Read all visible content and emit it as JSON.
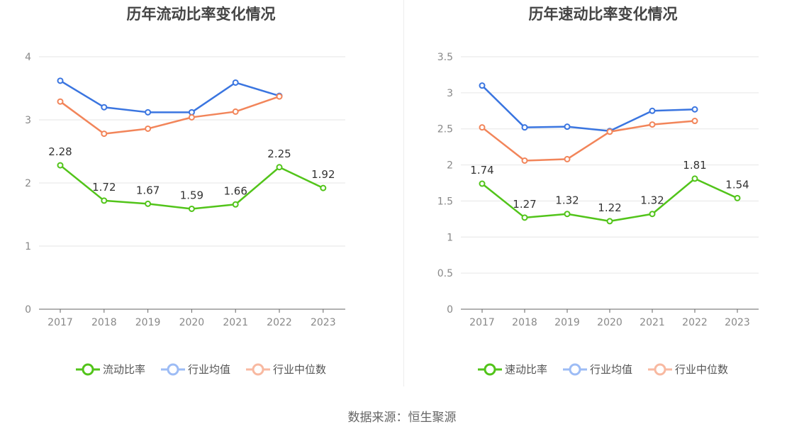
{
  "chart_data": [
    {
      "type": "line",
      "title": "历年流动比率变化情况",
      "categories": [
        "2017",
        "2018",
        "2019",
        "2020",
        "2021",
        "2022",
        "2023"
      ],
      "ylim": [
        0,
        4
      ],
      "yticks": [
        0,
        1,
        2,
        3,
        4
      ],
      "grid": true,
      "legend_position": "bottom",
      "series": [
        {
          "name": "流动比率",
          "color": "#52c41a",
          "values": [
            2.28,
            1.72,
            1.67,
            1.59,
            1.66,
            2.25,
            1.92
          ],
          "labels": [
            "2.28",
            "1.72",
            "1.67",
            "1.59",
            "1.66",
            "2.25",
            "1.92"
          ]
        },
        {
          "name": "行业均值",
          "color": "#3a75e0",
          "values": [
            3.62,
            3.2,
            3.12,
            3.12,
            3.59,
            3.38,
            null
          ]
        },
        {
          "name": "行业中位数",
          "color": "#f2855a",
          "values": [
            3.29,
            2.78,
            2.86,
            3.04,
            3.13,
            3.37,
            null
          ]
        }
      ]
    },
    {
      "type": "line",
      "title": "历年速动比率变化情况",
      "categories": [
        "2017",
        "2018",
        "2019",
        "2020",
        "2021",
        "2022",
        "2023"
      ],
      "ylim": [
        0,
        3.5
      ],
      "yticks": [
        0,
        0.5,
        1,
        1.5,
        2,
        2.5,
        3,
        3.5
      ],
      "grid": true,
      "legend_position": "bottom",
      "series": [
        {
          "name": "速动比率",
          "color": "#52c41a",
          "values": [
            1.74,
            1.27,
            1.32,
            1.22,
            1.32,
            1.81,
            1.54
          ],
          "labels": [
            "1.74",
            "1.27",
            "1.32",
            "1.22",
            "1.32",
            "1.81",
            "1.54"
          ]
        },
        {
          "name": "行业均值",
          "color": "#3a75e0",
          "values": [
            3.1,
            2.52,
            2.53,
            2.47,
            2.75,
            2.77,
            null
          ]
        },
        {
          "name": "行业中位数",
          "color": "#f2855a",
          "values": [
            2.52,
            2.06,
            2.08,
            2.46,
            2.56,
            2.61,
            null
          ]
        }
      ]
    }
  ],
  "legend_colors": {
    "primary": "#52c41a",
    "mean": "#9dbcf5",
    "median": "#f8b9a1"
  },
  "footer": {
    "source": "数据来源：恒生聚源"
  }
}
